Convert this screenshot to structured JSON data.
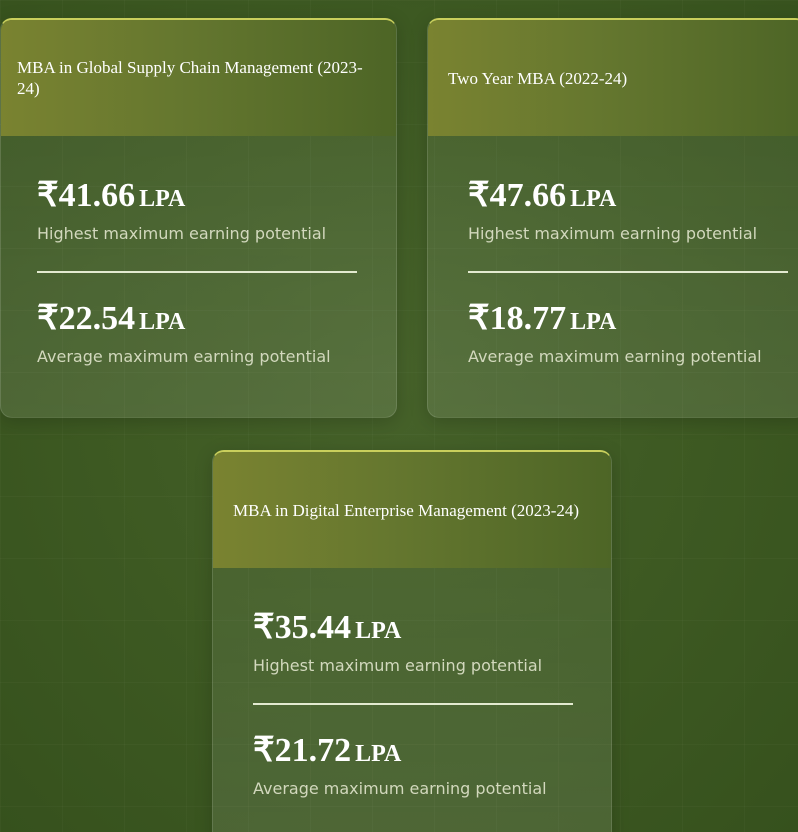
{
  "cards": [
    {
      "title": "MBA in Global Supply Chain Management (2023-24)",
      "highest": {
        "value": "₹41.66",
        "unit": "LPA",
        "label": "Highest maximum earning potential"
      },
      "average": {
        "value": "₹22.54",
        "unit": "LPA",
        "label": "Average maximum earning potential"
      }
    },
    {
      "title": "Two Year MBA (2022-24)",
      "highest": {
        "value": "₹47.66",
        "unit": "LPA",
        "label": "Highest maximum earning potential"
      },
      "average": {
        "value": "₹18.77",
        "unit": "LPA",
        "label": "Average maximum earning potential"
      }
    },
    {
      "title": "MBA in Digital Enterprise Management (2023-24)",
      "highest": {
        "value": "₹35.44",
        "unit": "LPA",
        "label": "Highest maximum earning potential"
      },
      "average": {
        "value": "₹21.72",
        "unit": "LPA",
        "label": "Average maximum earning potential"
      }
    }
  ],
  "colors": {
    "background": "#3c5822",
    "header_gradient_start": "#7a8330",
    "header_gradient_end": "#4d6526",
    "accent_border": "#c9cf5c",
    "label_text": "#d2d8bd",
    "divider": "#e3ead0"
  }
}
